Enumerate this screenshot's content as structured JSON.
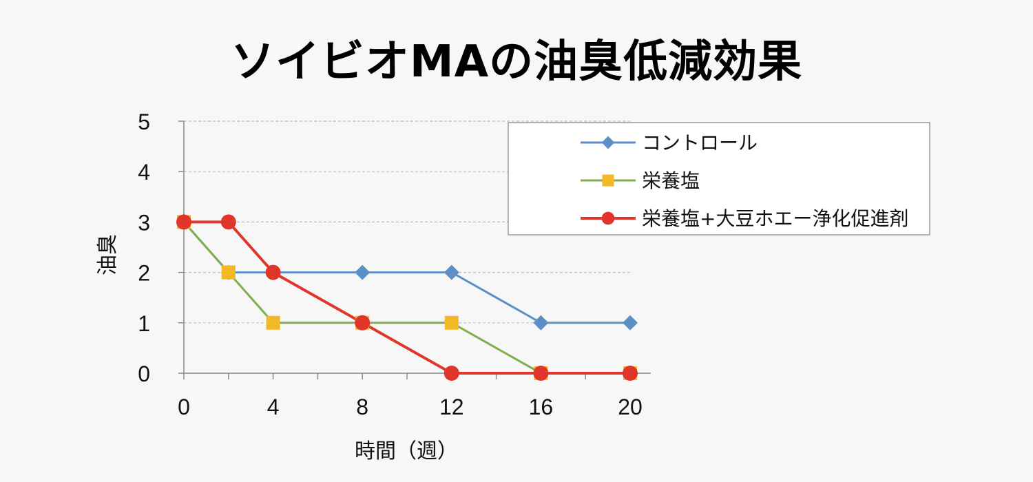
{
  "chart_data": {
    "type": "line",
    "title": "ソイビオMAの油臭低減効果",
    "xlabel": "時間（週）",
    "ylabel": "油臭",
    "x": [
      0,
      2,
      4,
      8,
      12,
      16,
      20
    ],
    "x_tick_labels": [
      "0",
      "4",
      "8",
      "12",
      "16",
      "20"
    ],
    "y_tick_labels": [
      "0",
      "1",
      "2",
      "3",
      "4",
      "5"
    ],
    "xlim": [
      0,
      20
    ],
    "ylim": [
      0,
      5
    ],
    "grid": "horizontal dashed",
    "legend_position": "top-right",
    "series": [
      {
        "name": "コントロール",
        "color": "#5b8fc6",
        "marker": "diamond",
        "x": [
          0,
          2,
          4,
          8,
          12,
          16,
          20
        ],
        "values": [
          3,
          2,
          2,
          2,
          2,
          1,
          1
        ]
      },
      {
        "name": "栄養塩",
        "color": "#7fae4a",
        "marker": "square",
        "marker_color": "#f2b826",
        "x": [
          0,
          2,
          4,
          8,
          12,
          16,
          20
        ],
        "values": [
          3,
          2,
          1,
          1,
          1,
          0,
          0
        ]
      },
      {
        "name": "栄養塩+大豆ホエー浄化促進剤",
        "color": "#e0352b",
        "marker": "circle",
        "x": [
          0,
          2,
          4,
          8,
          12,
          16,
          20
        ],
        "values": [
          3,
          3,
          2,
          1,
          0,
          0,
          0
        ]
      }
    ]
  }
}
